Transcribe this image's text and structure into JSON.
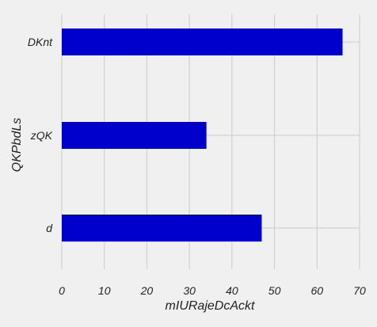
{
  "chart_data": {
    "type": "bar",
    "orientation": "horizontal",
    "categories": [
      "DKnt",
      "zQK",
      "d"
    ],
    "values": [
      66,
      34,
      47
    ],
    "xlabel": "mIURajeDcAckt",
    "ylabel": "QKPbdLs",
    "xlim": [
      0,
      70
    ],
    "xticks": [
      "0",
      "10",
      "20",
      "30",
      "40",
      "50",
      "60",
      "70"
    ],
    "grid": true,
    "bar_color": "#0000cc",
    "background": "#f0f0f0",
    "grid_color": "#cbcbcb"
  }
}
